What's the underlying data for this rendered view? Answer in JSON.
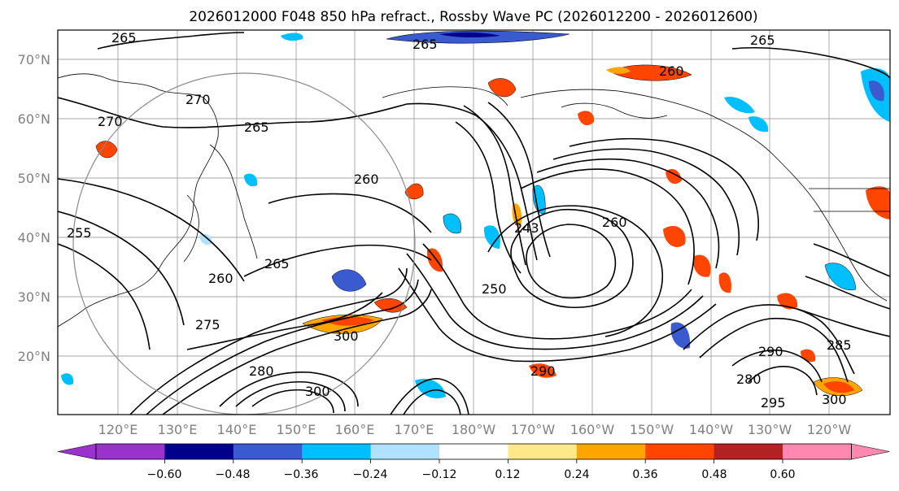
{
  "title": "2026012000 F048 850 hPa refract., Rossby Wave PC (2026012200 - 2026012600)",
  "map": {
    "lat_labels": [
      "70°N",
      "60°N",
      "50°N",
      "40°N",
      "30°N",
      "20°N"
    ],
    "lon_labels": [
      "120°E",
      "130°E",
      "140°E",
      "150°E",
      "160°E",
      "170°E",
      "180°W",
      "170°W",
      "160°W",
      "150°W",
      "140°W",
      "130°W",
      "120°W"
    ],
    "contour_labels": [
      "265",
      "265",
      "260",
      "260",
      "270",
      "270",
      "265",
      "255",
      "260",
      "265",
      "250",
      "243",
      "260",
      "300",
      "275",
      "280",
      "300",
      "290",
      "295",
      "300",
      "285",
      "290",
      "280",
      "265"
    ]
  },
  "colorbar": {
    "ticks": [
      "−0.60",
      "−0.48",
      "−0.36",
      "−0.24",
      "−0.12",
      "0.12",
      "0.24",
      "0.36",
      "0.48",
      "0.60"
    ],
    "colors": [
      "#9933cc",
      "#00008b",
      "#3a5bd0",
      "#00bfff",
      "#b0e2ff",
      "#ffffff",
      "#ffe88a",
      "#ffa500",
      "#ff4500",
      "#b22222",
      "#ff88b0"
    ]
  }
}
